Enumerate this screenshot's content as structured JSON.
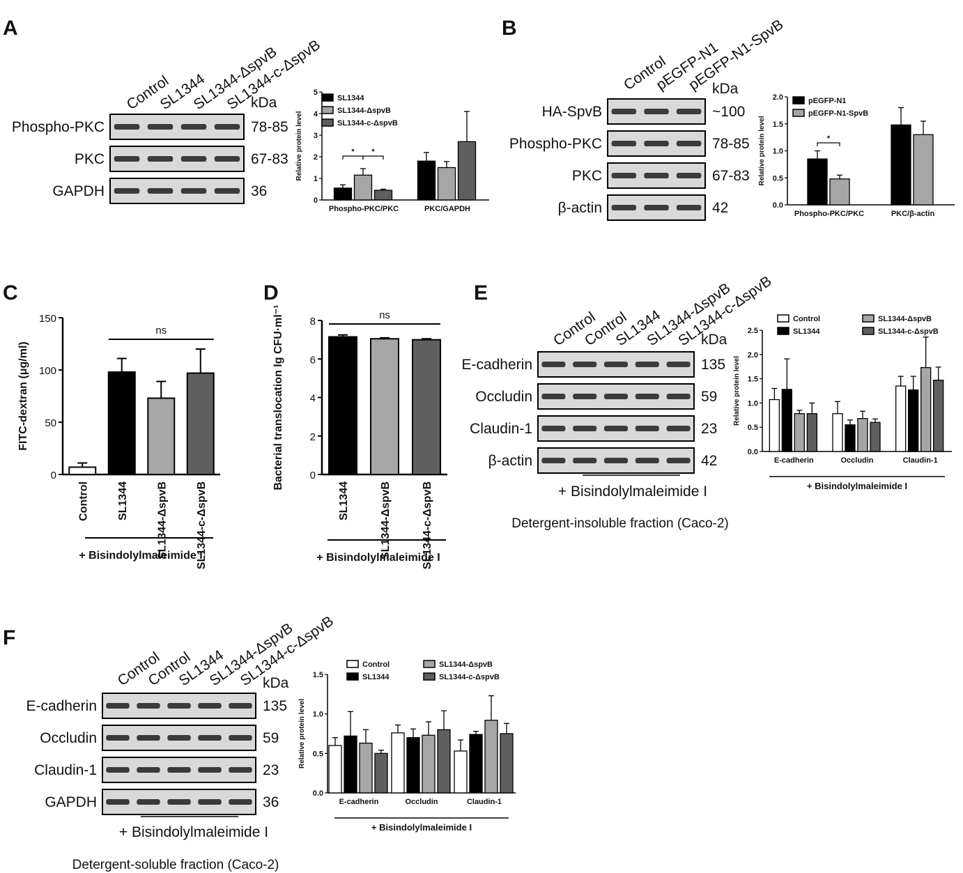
{
  "colors": {
    "black": "#000000",
    "light": "#a6a6a6",
    "dark": "#5f5f5f",
    "white": "#ffffff",
    "blot": "#d9d9d9",
    "band": "#1e1e1e"
  },
  "panels": {
    "A": {
      "label": "A",
      "lanes": [
        "Control",
        "SL1344",
        "SL1344-ΔspvB",
        "SL1344-c-ΔspvB"
      ],
      "kda_header": "kDa",
      "blots": [
        {
          "name": "Phospho-PKC",
          "kda": "78-85"
        },
        {
          "name": "PKC",
          "kda": "67-83"
        },
        {
          "name": "GAPDH",
          "kda": "36"
        }
      ]
    },
    "B": {
      "label": "B",
      "lanes": [
        "Control",
        "pEGFP-N1",
        "pEGFP-N1-SpvB"
      ],
      "kda_header": "kDa",
      "blots": [
        {
          "name": "HA-SpvB",
          "kda": "~100"
        },
        {
          "name": "Phospho-PKC",
          "kda": "78-85"
        },
        {
          "name": "PKC",
          "kda": "67-83"
        },
        {
          "name": "β-actin",
          "kda": "42"
        }
      ]
    },
    "C": {
      "label": "C"
    },
    "D": {
      "label": "D"
    },
    "E": {
      "label": "E",
      "lanes": [
        "Control",
        "Control",
        "SL1344",
        "SL1344-ΔspvB",
        "SL1344-c-ΔspvB"
      ],
      "kda_header": "kDa",
      "blots": [
        {
          "name": "E-cadherin",
          "kda": "135"
        },
        {
          "name": "Occludin",
          "kda": "59"
        },
        {
          "name": "Claudin-1",
          "kda": "23"
        },
        {
          "name": "β-actin",
          "kda": "42"
        }
      ],
      "treatment": "+ Bisindolylmaleimide I",
      "caption": "Detergent-insoluble fraction (Caco-2)"
    },
    "F": {
      "label": "F",
      "lanes": [
        "Control",
        "Control",
        "SL1344",
        "SL1344-ΔspvB",
        "SL1344-c-ΔspvB"
      ],
      "kda_header": "kDa",
      "blots": [
        {
          "name": "E-cadherin",
          "kda": "135"
        },
        {
          "name": "Occludin",
          "kda": "59"
        },
        {
          "name": "Claudin-1",
          "kda": "23"
        },
        {
          "name": "GAPDH",
          "kda": "36"
        }
      ],
      "treatment": "+ Bisindolylmaleimide I",
      "caption": "Detergent-soluble fraction (Caco-2)"
    }
  },
  "chart_data": [
    {
      "id": "A",
      "type": "bar",
      "ylabel": "Relative protein level",
      "ylim": [
        0,
        5
      ],
      "yticks": [
        0,
        1,
        2,
        3,
        4,
        5
      ],
      "categories": [
        "Phospho-PKC/PKC",
        "PKC/GAPDH"
      ],
      "series": [
        {
          "name": "SL1344",
          "color": "#000000",
          "values": [
            0.55,
            1.8
          ],
          "errors": [
            0.15,
            0.4
          ]
        },
        {
          "name": "SL1344-ΔspvB",
          "color": "#a6a6a6",
          "values": [
            1.15,
            1.5
          ],
          "errors": [
            0.3,
            0.28
          ]
        },
        {
          "name": "SL1344-c-ΔspvB",
          "color": "#5f5f5f",
          "values": [
            0.45,
            2.7
          ],
          "errors": [
            0.05,
            1.4
          ]
        }
      ],
      "legend": "top-left",
      "significance": [
        {
          "label": "*",
          "from": 0,
          "to": 1
        },
        {
          "label": "*",
          "from": 1,
          "to": 2
        }
      ]
    },
    {
      "id": "B",
      "type": "bar",
      "ylabel": "Relative protein level",
      "ylim": [
        0,
        2.0
      ],
      "yticks": [
        0,
        0.5,
        1.0,
        1.5,
        2.0
      ],
      "categories": [
        "Phospho-PKC/PKC",
        "PKC/β-actin"
      ],
      "series": [
        {
          "name": "pEGFP-N1",
          "color": "#000000",
          "values": [
            0.85,
            1.48
          ],
          "errors": [
            0.15,
            0.32
          ]
        },
        {
          "name": "pEGFP-N1-SpvB",
          "color": "#a6a6a6",
          "values": [
            0.48,
            1.3
          ],
          "errors": [
            0.07,
            0.25
          ]
        }
      ],
      "legend": "top-left",
      "significance": [
        {
          "label": "*",
          "from": 0,
          "to": 1
        }
      ]
    },
    {
      "id": "C",
      "type": "bar",
      "ylabel": "FITC-dextran (μg/ml)",
      "ylim": [
        0,
        150
      ],
      "yticks": [
        0,
        50,
        100,
        150
      ],
      "categories": [
        "Control",
        "SL1344",
        "SL1344-ΔspvB",
        "SL1344-c-ΔspvB"
      ],
      "values": [
        7,
        98,
        73,
        97
      ],
      "errors": [
        4,
        13,
        16,
        23
      ],
      "colors": [
        "#ffffff",
        "#000000",
        "#a6a6a6",
        "#5f5f5f"
      ],
      "treatment": "+ Bisindolylmaleimide I",
      "annotation": "ns"
    },
    {
      "id": "D",
      "type": "bar",
      "ylabel": "Bacterial translocation lg CFU·ml⁻¹",
      "ylim": [
        0,
        8
      ],
      "yticks": [
        0,
        2,
        4,
        6,
        8
      ],
      "categories": [
        "SL1344",
        "SL1344-ΔspvB",
        "SL1344-c-ΔspvB"
      ],
      "values": [
        7.15,
        7.05,
        7.0
      ],
      "errors": [
        0.1,
        0.05,
        0.05
      ],
      "colors": [
        "#000000",
        "#a6a6a6",
        "#5f5f5f"
      ],
      "treatment": "+ Bisindolylmaleimide I",
      "annotation": "ns"
    },
    {
      "id": "E",
      "type": "bar",
      "ylabel": "Relative protein level",
      "ylim": [
        0,
        2.5
      ],
      "yticks": [
        0.0,
        0.5,
        1.0,
        1.5,
        2.0,
        2.5
      ],
      "categories": [
        "E-cadherin",
        "Occludin",
        "Claudin-1"
      ],
      "series": [
        {
          "name": "Control",
          "color": "#ffffff",
          "values": [
            1.07,
            0.78,
            1.35
          ],
          "errors": [
            0.23,
            0.25,
            0.2
          ]
        },
        {
          "name": "SL1344",
          "color": "#000000",
          "values": [
            1.28,
            0.55,
            1.27
          ],
          "errors": [
            0.63,
            0.1,
            0.28
          ]
        },
        {
          "name": "SL1344-ΔspvB",
          "color": "#a6a6a6",
          "values": [
            0.78,
            0.68,
            1.73
          ],
          "errors": [
            0.07,
            0.15,
            0.63
          ]
        },
        {
          "name": "SL1344-c-ΔspvB",
          "color": "#5f5f5f",
          "values": [
            0.78,
            0.6,
            1.47
          ],
          "errors": [
            0.22,
            0.07,
            0.27
          ]
        }
      ],
      "legend": "top",
      "treatment": "+ Bisindolylmaleimide I"
    },
    {
      "id": "F",
      "type": "bar",
      "ylabel": "Relative protein level",
      "ylim": [
        0,
        1.5
      ],
      "yticks": [
        0.0,
        0.5,
        1.0,
        1.5
      ],
      "categories": [
        "E-cadherin",
        "Occludin",
        "Claudin-1"
      ],
      "series": [
        {
          "name": "Control",
          "color": "#ffffff",
          "values": [
            0.6,
            0.76,
            0.53
          ],
          "errors": [
            0.1,
            0.1,
            0.14
          ]
        },
        {
          "name": "SL1344",
          "color": "#000000",
          "values": [
            0.72,
            0.7,
            0.74
          ],
          "errors": [
            0.31,
            0.11,
            0.04
          ]
        },
        {
          "name": "SL1344-ΔspvB",
          "color": "#a6a6a6",
          "values": [
            0.63,
            0.73,
            0.92
          ],
          "errors": [
            0.17,
            0.17,
            0.31
          ]
        },
        {
          "name": "SL1344-c-ΔspvB",
          "color": "#5f5f5f",
          "values": [
            0.5,
            0.8,
            0.75
          ],
          "errors": [
            0.04,
            0.24,
            0.13
          ]
        }
      ],
      "legend": "top",
      "treatment": "+ Bisindolylmaleimide I"
    }
  ]
}
